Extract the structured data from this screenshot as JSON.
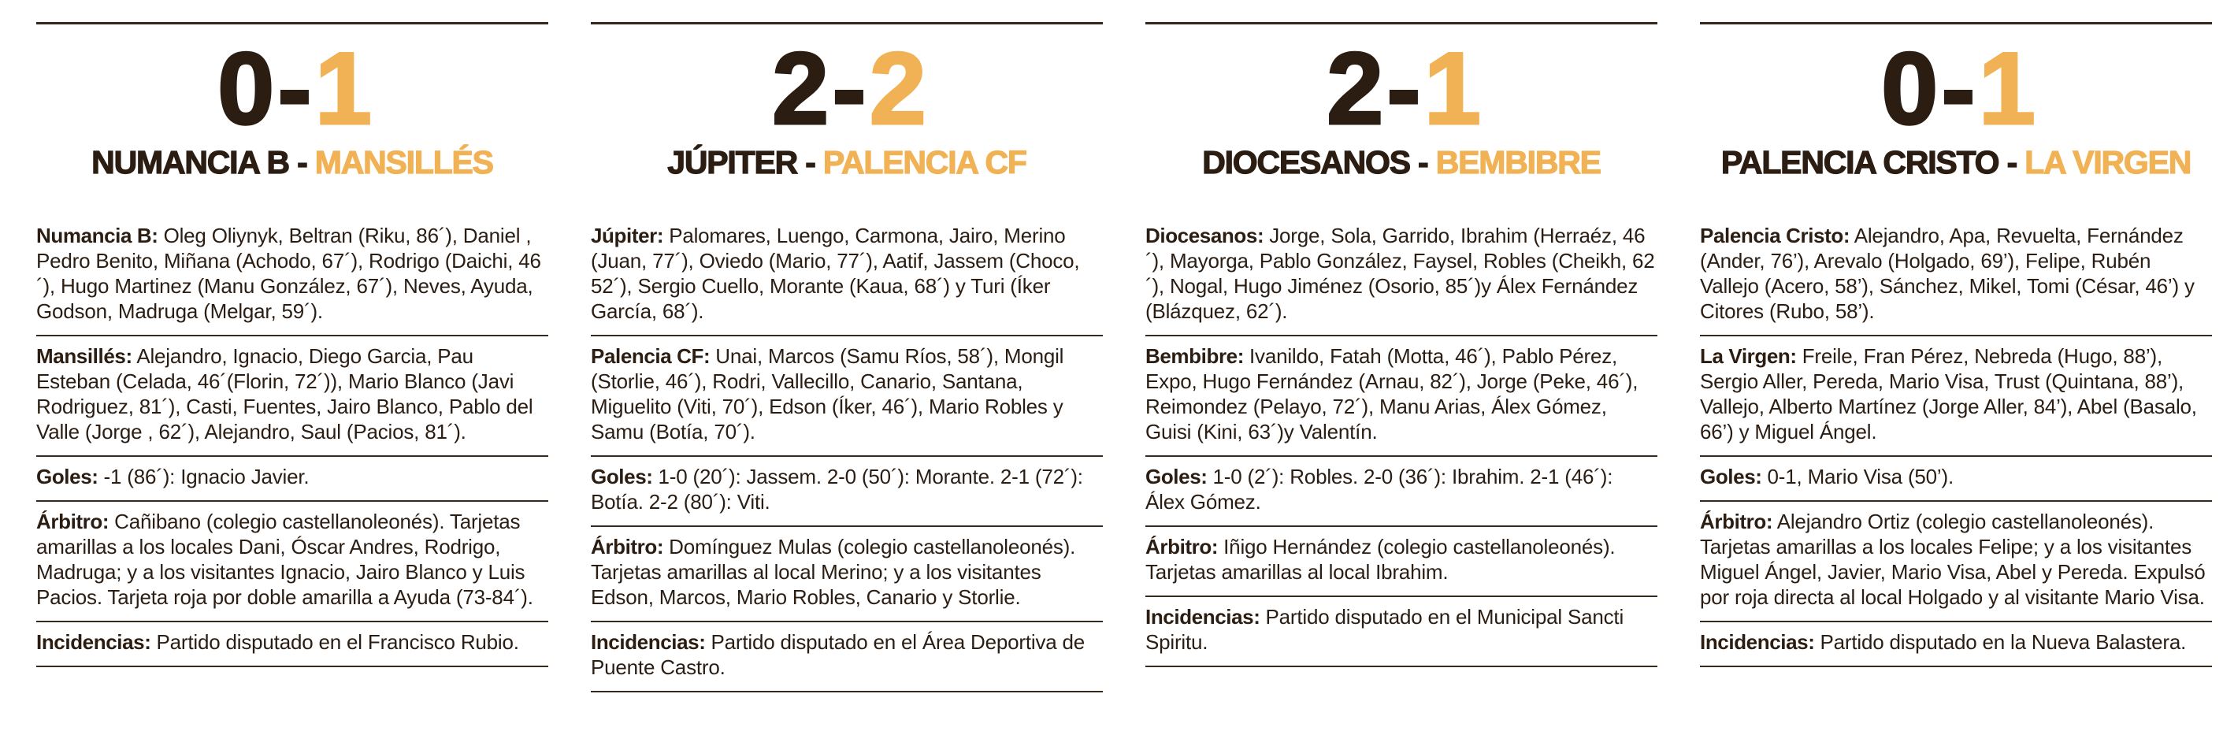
{
  "theme": {
    "ink": "#2B1D12",
    "accent": "#F0B254",
    "rule": "#35291D",
    "background": "#FFFFFF"
  },
  "matches": [
    {
      "score": {
        "home": "0",
        "separator": "-",
        "away": "1"
      },
      "title": {
        "home": "NUMANCIA B",
        "separator": "-",
        "away": "MANSILLÉS"
      },
      "sections": [
        {
          "label": "Numancia B:",
          "text": "Oleg Oliynyk, Beltran (Riku, 86´), Daniel , Pedro Benito, Miñana (Achodo, 67´), Rodrigo (Daichi, 46´), Hugo Martinez (Manu González, 67´), Neves, Ayuda, Godson, Madruga (Melgar, 59´)."
        },
        {
          "label": "Mansillés:",
          "text": "Alejandro, Ignacio, Diego Garcia, Pau Esteban (Celada, 46´(Florin, 72´)), Mario Blanco (Javi Rodriguez, 81´), Casti, Fuentes, Jairo Blanco, Pablo del Valle (Jorge , 62´), Alejandro, Saul (Pacios, 81´)."
        },
        {
          "label": "Goles:",
          "text": "-1 (86´): Ignacio Javier."
        },
        {
          "label": "Árbitro:",
          "text": "Cañibano (colegio castellanoleonés). Tarjetas amarillas a los locales Dani, Óscar Andres, Rodrigo, Madruga; y a los visitantes Ignacio, Jairo Blanco y Luis Pacios. Tarjeta roja por doble amarilla a Ayuda (73-84´)."
        },
        {
          "label": "Incidencias:",
          "text": "Partido disputado en el Francisco Rubio."
        }
      ]
    },
    {
      "score": {
        "home": "2",
        "separator": "-",
        "away": "2"
      },
      "title": {
        "home": "JÚPITER",
        "separator": "-",
        "away": "PALENCIA CF"
      },
      "sections": [
        {
          "label": "Júpiter:",
          "text": "Palomares, Luengo, Carmona, Jairo, Merino (Juan, 77´), Oviedo (Mario, 77´), Aatif, Jassem (Choco, 52´), Sergio Cuello, Morante (Kaua, 68´) y Turi (Íker García, 68´)."
        },
        {
          "label": "Palencia CF:",
          "text": "Unai, Marcos (Samu Ríos, 58´), Mongil (Storlie, 46´), Rodri, Vallecillo, Canario, Santana, Miguelito (Viti, 70´), Edson (Íker, 46´), Mario Robles y Samu (Botía, 70´)."
        },
        {
          "label": "Goles:",
          "text": "1-0 (20´): Jassem. 2-0 (50´): Morante. 2-1 (72´): Botía. 2-2 (80´): Viti."
        },
        {
          "label": "Árbitro:",
          "text": "Domínguez Mulas (colegio castellanoleonés). Tarjetas amarillas al local Merino; y a los visitantes Edson, Marcos, Mario Robles, Canario y Storlie."
        },
        {
          "label": "Incidencias:",
          "text": "Partido disputado en el Área Deportiva de Puente Castro."
        }
      ]
    },
    {
      "score": {
        "home": "2",
        "separator": "-",
        "away": "1"
      },
      "title": {
        "home": "DIOCESANOS",
        "separator": "-",
        "away": "BEMBIBRE"
      },
      "sections": [
        {
          "label": "Diocesanos:",
          "text": "Jorge, Sola, Garrido, Ibrahim (Herraéz, 46´), Mayorga, Pablo González, Faysel, Robles (Cheikh, 62´), Nogal, Hugo Jiménez (Osorio, 85´)y Álex Fernández (Blázquez, 62´)."
        },
        {
          "label": "Bembibre:",
          "text": "Ivanildo, Fatah (Motta, 46´), Pablo Pérez, Expo, Hugo Fernández (Arnau, 82´), Jorge (Peke, 46´), Reimondez (Pelayo, 72´), Manu Arias, Álex Gómez, Guisi (Kini, 63´)y Valentín."
        },
        {
          "label": "Goles:",
          "text": "1-0 (2´): Robles. 2-0 (36´): Ibrahim. 2-1 (46´): Álex Gómez."
        },
        {
          "label": "Árbitro:",
          "text": "Iñigo Hernández (colegio castellanoleonés). Tarjetas amarillas al local Ibrahim."
        },
        {
          "label": "Incidencias:",
          "text": "Partido disputado en el Municipal Sancti Spiritu."
        }
      ]
    },
    {
      "score": {
        "home": "0",
        "separator": "-",
        "away": "1"
      },
      "title": {
        "home": "PALENCIA CRISTO",
        "separator": "-",
        "away": "LA VIRGEN"
      },
      "sections": [
        {
          "label": "Palencia Cristo:",
          "text": "Alejandro, Apa, Revuelta, Fernández (Ander, 76’), Arevalo (Holgado, 69’), Felipe, Rubén Vallejo (Acero, 58’), Sánchez, Mikel, Tomi (César, 46’) y Citores (Rubo, 58’)."
        },
        {
          "label": "La Virgen:",
          "text": "Freile, Fran Pérez, Nebreda (Hugo, 88’), Sergio Aller, Pereda, Mario Visa, Trust (Quintana, 88’), Vallejo, Alberto Martínez (Jorge Aller, 84’), Abel (Basalo, 66’) y Miguel Ángel."
        },
        {
          "label": "Goles:",
          "text": "0-1, Mario Visa (50’)."
        },
        {
          "label": "Árbitro:",
          "text": "Alejandro Ortiz (colegio castellanoleonés). Tarjetas amarillas a los locales Felipe; y a los visitantes Miguel Ángel, Javier, Mario Visa, Abel y Pereda. Expulsó por roja directa al local Holgado y al visitante Mario Visa."
        },
        {
          "label": "Incidencias:",
          "text": "Partido disputado en la Nueva Balastera."
        }
      ]
    }
  ]
}
